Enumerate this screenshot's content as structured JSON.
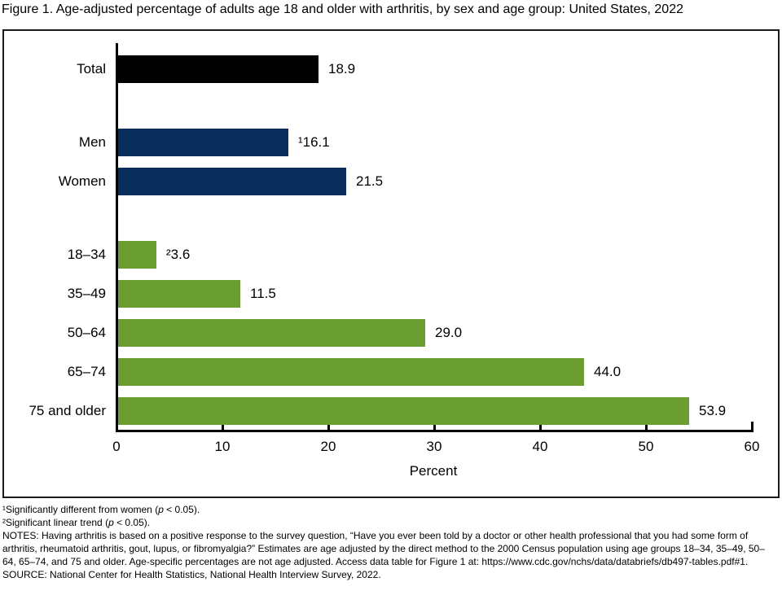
{
  "title": "Figure 1. Age-adjusted percentage of adults age 18 and older with arthritis, by sex and age group: United States, 2022",
  "chart_data": {
    "type": "bar",
    "orientation": "horizontal",
    "title": "Figure 1. Age-adjusted percentage of adults age 18 and older with arthritis, by sex and age group: United States, 2022",
    "xlabel": "Percent",
    "xlim": [
      0,
      60
    ],
    "xticks": [
      0,
      10,
      20,
      30,
      40,
      50,
      60
    ],
    "grid": false,
    "legend": "none",
    "colors": {
      "total": "#000000",
      "sex": "#0a2e5c",
      "age": "#6a9e33"
    },
    "bars": [
      {
        "label": "Total",
        "value": 18.9,
        "display": "18.9",
        "group": "total"
      },
      {
        "label": "Men",
        "value": 16.1,
        "display": "¹16.1",
        "group": "sex"
      },
      {
        "label": "Women",
        "value": 21.5,
        "display": "21.5",
        "group": "sex"
      },
      {
        "label": "18–34",
        "value": 3.6,
        "display": "²3.6",
        "group": "age"
      },
      {
        "label": "35–49",
        "value": 11.5,
        "display": "11.5",
        "group": "age"
      },
      {
        "label": "50–64",
        "value": 29.0,
        "display": "29.0",
        "group": "age"
      },
      {
        "label": "65–74",
        "value": 44.0,
        "display": "44.0",
        "group": "age"
      },
      {
        "label": "75 and older",
        "value": 53.9,
        "display": "53.9",
        "group": "age"
      }
    ]
  },
  "footnotes": [
    "¹Significantly different from women (p < 0.05).",
    "²Significant linear trend (p < 0.05).",
    "NOTES: Having arthritis is based on a positive response to the survey question, “Have you ever been told by a doctor or other health professional that you had some form of arthritis, rheumatoid arthritis, gout, lupus, or fibromyalgia?” Estimates are age adjusted by the direct method to the 2000 Census population using age groups 18–34, 35–49, 50–64, 65–74, and 75 and older. Age-specific percentages are not age adjusted. Access data table for Figure 1 at: https://www.cdc.gov/nchs/data/databriefs/db497-tables.pdf#1.",
    "SOURCE: National Center for Health Statistics, National Health Interview Survey, 2022."
  ]
}
